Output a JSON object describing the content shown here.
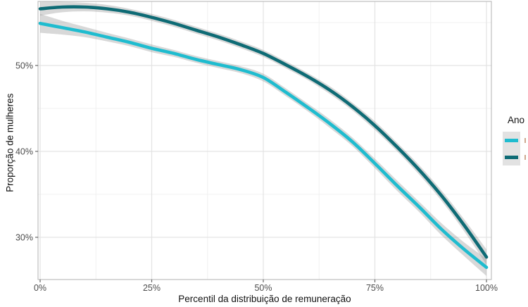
{
  "figure": {
    "kind": "ggplot-style smoothed line chart with confidence ribbons",
    "background": "#ffffff"
  },
  "legend": {
    "title": "Ano",
    "items": [
      {
        "id": "series-cyan",
        "label": "",
        "label_clipped_by_image_edge": true,
        "color": "#1fbccf"
      },
      {
        "id": "series-teal",
        "label": "",
        "label_clipped_by_image_edge": true,
        "color": "#0e6b75"
      }
    ]
  },
  "chart_data": {
    "type": "line",
    "title": "",
    "xlabel": "Percentil da distribuição de remuneração",
    "ylabel": "Proporção de mulheres",
    "x": [
      0,
      5,
      10,
      15,
      20,
      25,
      30,
      35,
      40,
      45,
      50,
      55,
      60,
      65,
      70,
      75,
      80,
      85,
      90,
      95,
      100
    ],
    "xlim": [
      0,
      100
    ],
    "ylim": [
      25.1,
      57.5
    ],
    "x_ticks": [
      0,
      25,
      50,
      75,
      100
    ],
    "x_tick_labels": [
      "0%",
      "25%",
      "50%",
      "75%",
      "100%"
    ],
    "x_minor_ticks": [
      12.5,
      37.5,
      62.5,
      87.5
    ],
    "y_ticks": [
      30,
      40,
      50
    ],
    "y_tick_labels": [
      "30%",
      "40%",
      "50%"
    ],
    "y_minor_ticks": [
      35,
      45,
      55
    ],
    "grid": "major+minor",
    "legend_position": "right",
    "legend_title": "Ano",
    "series": [
      {
        "id": "series-cyan",
        "label": "",
        "color": "#1fbccf",
        "values": [
          54.9,
          54.4,
          53.9,
          53.3,
          52.7,
          52.0,
          51.4,
          50.7,
          50.1,
          49.5,
          48.6,
          46.9,
          45.1,
          43.2,
          41.1,
          38.6,
          36.0,
          33.5,
          30.9,
          28.6,
          26.5
        ],
        "ci_halfwidth": [
          1.1,
          0.8,
          0.6,
          0.5,
          0.45,
          0.45,
          0.4,
          0.4,
          0.4,
          0.4,
          0.45,
          0.45,
          0.45,
          0.5,
          0.5,
          0.55,
          0.6,
          0.6,
          0.7,
          0.8,
          1.0
        ]
      },
      {
        "id": "series-teal",
        "label": "",
        "color": "#0e6b75",
        "values": [
          56.6,
          56.8,
          56.8,
          56.6,
          56.2,
          55.6,
          54.9,
          54.1,
          53.3,
          52.4,
          51.4,
          50.1,
          48.7,
          47.1,
          45.2,
          43.0,
          40.5,
          37.8,
          34.8,
          31.4,
          27.7
        ],
        "ci_halfwidth": [
          0.8,
          0.6,
          0.5,
          0.45,
          0.4,
          0.4,
          0.4,
          0.4,
          0.4,
          0.4,
          0.4,
          0.4,
          0.4,
          0.45,
          0.45,
          0.5,
          0.5,
          0.55,
          0.6,
          0.7,
          0.9
        ]
      }
    ],
    "ci_color": "#8f8f8f",
    "ci_opacity": 0.35,
    "style": {
      "panel_border": "#bdbdbd",
      "grid_major": "#e3e3e3",
      "grid_minor": "#f0f0f0",
      "tick_color": "#666666",
      "tick_label_color": "#4d4d4d"
    }
  }
}
